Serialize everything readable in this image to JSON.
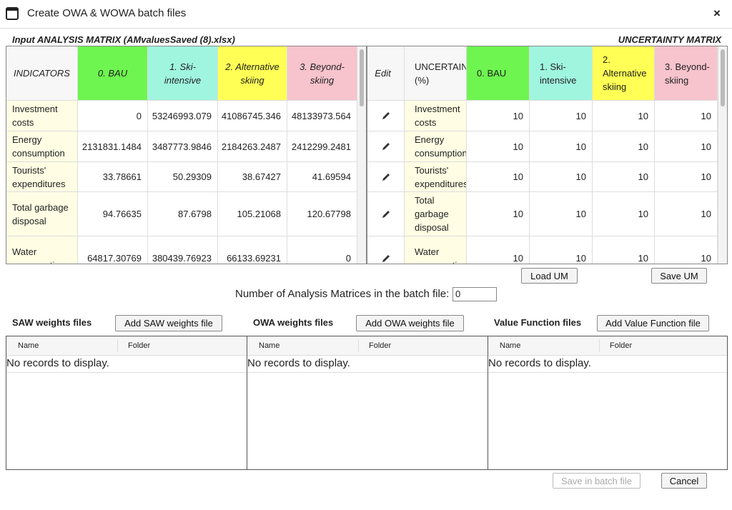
{
  "window": {
    "title": "Create OWA & WOWA batch files",
    "close": "×"
  },
  "analysis_matrix": {
    "title": "Input ANALYSIS MATRIX (AMvaluesSaved (8).xlsx)",
    "columns": [
      "INDICATORS",
      "0. BAU",
      "1. Ski-intensive",
      "2. Alternative skiing",
      "3. Beyond-skiing"
    ],
    "rows": [
      [
        "Investment costs",
        "0",
        "53246993.079",
        "41086745.346",
        "48133973.564"
      ],
      [
        "Energy consumption",
        "2131831.1484",
        "3487773.9846",
        "2184263.2487",
        "2412299.2481"
      ],
      [
        "Tourists' expenditures",
        "33.78661",
        "50.29309",
        "38.67427",
        "41.69594"
      ],
      [
        "Total garbage disposal",
        "94.76635",
        "87.6798",
        "105.21068",
        "120.67798"
      ],
      [
        "Water consumption",
        "64817.30769",
        "380439.76923",
        "66133.69231",
        "0"
      ]
    ]
  },
  "uncertainty_matrix": {
    "title": "UNCERTAINTY MATRIX",
    "columns": [
      "Edit",
      "UNCERTAINTY (%)",
      "0. BAU",
      "1. Ski-intensive",
      "2. Alternative skiing",
      "3. Beyond-skiing"
    ],
    "rows": [
      [
        "Investment costs",
        "10",
        "10",
        "10",
        "10"
      ],
      [
        "Energy consumption",
        "10",
        "10",
        "10",
        "10"
      ],
      [
        "Tourists' expenditures",
        "10",
        "10",
        "10",
        "10"
      ],
      [
        "Total garbage disposal",
        "10",
        "10",
        "10",
        "10"
      ],
      [
        "Water consumption",
        "10",
        "10",
        "10",
        "10"
      ]
    ],
    "buttons": [
      "Load UM",
      "Save UM"
    ]
  },
  "batch_count": {
    "label": "Number of Analysis Matrices in the batch file:",
    "value": "0"
  },
  "panels": [
    {
      "title": "SAW weights files",
      "button": "Add SAW weights file",
      "columns": [
        "Name",
        "Folder"
      ],
      "empty": "No records to display."
    },
    {
      "title": "OWA weights files",
      "button": "Add OWA weights file",
      "columns": [
        "Name",
        "Folder"
      ],
      "empty": "No records to display."
    },
    {
      "title": "Value Function files",
      "button": "Add Value Function file",
      "columns": [
        "Name",
        "Folder"
      ],
      "empty": "No records to display."
    }
  ],
  "footer": {
    "save": "Save in batch file",
    "cancel": "Cancel"
  }
}
